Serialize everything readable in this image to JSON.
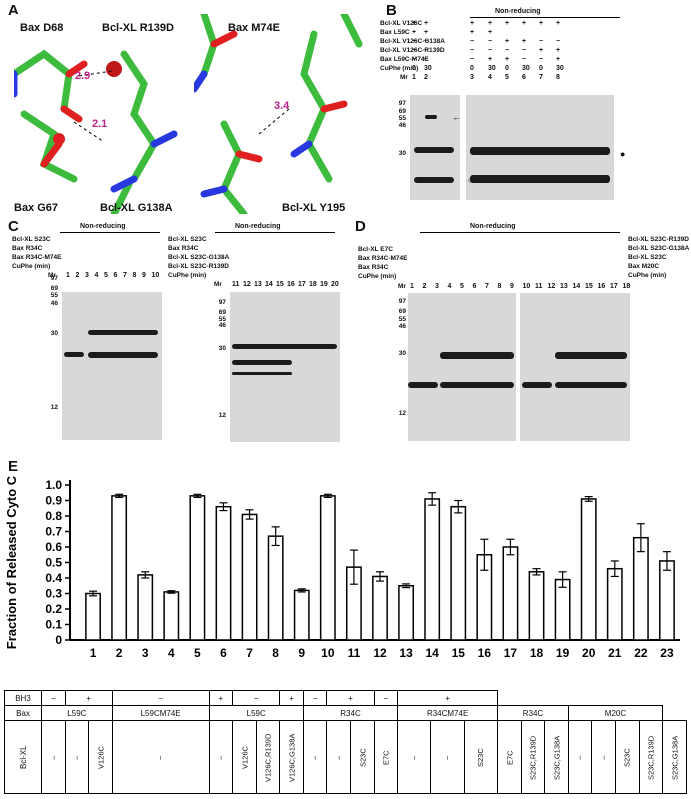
{
  "panels": {
    "a": "A",
    "b": "B",
    "c": "C",
    "d": "D",
    "e": "E"
  },
  "panelA": {
    "labels": {
      "bax_d68": "Bax D68",
      "bclxl_r139d": "Bcl-XL R139D",
      "bax_g67": "Bax G67",
      "bclxl_g138a": "Bcl-XL G138A",
      "bax_m74e": "Bax M74E",
      "bclxl_y195": "Bcl-XL Y195"
    },
    "distances": {
      "d1": "2.9",
      "d2": "2.1",
      "d3": "3.4"
    }
  },
  "panelB": {
    "header": "Non-reducing",
    "rows": [
      "Bcl-XL V126C",
      "Bax L59C",
      "Bcl-XL V126C-G138A",
      "Bcl-XL V126C-R139D",
      "Bax L59C-M74E",
      "CuPhe (min)"
    ],
    "signs": [
      [
        "+",
        "+",
        "",
        "+",
        "+",
        "+",
        "+",
        "+",
        "+"
      ],
      [
        "+",
        "+",
        "",
        "+",
        "+",
        "",
        "",
        "",
        ""
      ],
      [
        "−",
        "−",
        "",
        "−",
        "−",
        "+",
        "+",
        "−",
        "−"
      ],
      [
        "−",
        "−",
        "",
        "−",
        "−",
        "−",
        "−",
        "+",
        "+"
      ],
      [
        "−",
        "−",
        "",
        "−",
        "+",
        "+",
        "−",
        "−",
        "+"
      ]
    ],
    "cuphe": [
      "0",
      "30",
      "",
      "0",
      "30",
      "0",
      "30",
      "0",
      "30"
    ],
    "mr": "Mr",
    "lanes": [
      "1",
      "2",
      "3",
      "4",
      "5",
      "6",
      "7",
      "8"
    ],
    "mw": [
      "97",
      "69",
      "55",
      "46",
      "30"
    ]
  },
  "panelC": {
    "header1": "Non-reducing",
    "header2": "Non-reducing",
    "rows1": [
      "Bcl-XL S23C",
      "Bax R34C",
      "Bax R34C-M74E",
      "CuPhe (min)"
    ],
    "rows2": [
      "Bcl-XL S23C",
      "Bax R34C",
      "Bcl-XL S23C-G138A",
      "Bcl-XL S23C-R139D",
      "CuPhe (min)"
    ],
    "lanes1": [
      "1",
      "2",
      "3",
      "4",
      "5",
      "6",
      "7",
      "8",
      "9",
      "10"
    ],
    "lanes2": [
      "11",
      "12",
      "13",
      "14",
      "15",
      "16",
      "17",
      "18",
      "19",
      "20"
    ],
    "mw1": [
      "97",
      "69",
      "55",
      "46",
      "30",
      "12"
    ],
    "mw2": [
      "97",
      "69",
      "55",
      "46",
      "30",
      "12"
    ],
    "mr": "Mr"
  },
  "panelD": {
    "header": "Non-reducing",
    "rowsLeft": [
      "Bcl-XL E7C",
      "Bax R34C-M74E",
      "Bax R34C",
      "CuPhe (min)"
    ],
    "rowsRight": [
      "Bcl-XL S23C-R139D",
      "Bcl-XL S23C-G138A",
      "Bcl-XL S23C",
      "Bax M20C",
      "CuPhe (min)"
    ],
    "lanes": [
      "1",
      "2",
      "3",
      "4",
      "5",
      "6",
      "7",
      "8",
      "9",
      "10",
      "11",
      "12",
      "13",
      "14",
      "15",
      "16",
      "17",
      "18"
    ],
    "mw": [
      "97",
      "69",
      "55",
      "46",
      "30",
      "12"
    ],
    "mr": "Mr"
  },
  "chart_data": {
    "type": "bar",
    "ylabel": "Fraction of Released Cyto C",
    "ylim": [
      0,
      1.0
    ],
    "yticks": [
      "0",
      "0.1",
      "0.2",
      "0.3",
      "0.4",
      "0.5",
      "0.6",
      "0.7",
      "0.8",
      "0.9",
      "1.0"
    ],
    "categories": [
      "1",
      "2",
      "3",
      "4",
      "5",
      "6",
      "7",
      "8",
      "9",
      "10",
      "11",
      "12",
      "13",
      "14",
      "15",
      "16",
      "17",
      "18",
      "19",
      "20",
      "21",
      "22",
      "23"
    ],
    "values": [
      0.3,
      0.93,
      0.42,
      0.31,
      0.93,
      0.86,
      0.81,
      0.67,
      0.32,
      0.93,
      0.47,
      0.41,
      0.35,
      0.91,
      0.86,
      0.55,
      0.6,
      0.44,
      0.39,
      0.91,
      0.46,
      0.66,
      0.51
    ],
    "errors": [
      0.015,
      0.01,
      0.02,
      0.008,
      0.01,
      0.025,
      0.03,
      0.06,
      0.01,
      0.01,
      0.11,
      0.03,
      0.012,
      0.04,
      0.04,
      0.1,
      0.05,
      0.02,
      0.05,
      0.015,
      0.05,
      0.09,
      0.06
    ]
  },
  "legendTable": {
    "bh3_label": "BH3",
    "bax_label": "Bax",
    "bclxl_label": "Bcl-XL",
    "bh3": [
      "−",
      "+",
      "−",
      "+",
      "−",
      "+",
      "−",
      "+",
      "−",
      "+"
    ],
    "bax": [
      "L59C",
      "L59CM74E",
      "L59C",
      "R34C",
      "R34CM74E",
      "R34C",
      "M20C"
    ],
    "bclxl": [
      "−",
      "−",
      "V126C",
      "−",
      "−",
      "V126C",
      "V126C,R139D",
      "V126C,G138A",
      "−",
      "−",
      "S23C",
      "E7C",
      "−",
      "−",
      "S23C",
      "E7C",
      "S23C,R139D",
      "S23C,G138A",
      "−",
      "−",
      "S23C",
      "S23C,R139D",
      "S23C,G138A"
    ]
  }
}
